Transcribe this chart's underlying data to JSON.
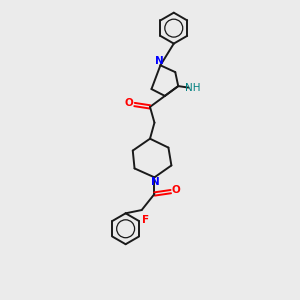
{
  "bg_color": "#ebebeb",
  "bond_color": "#1a1a1a",
  "N_color": "#0000ff",
  "O_color": "#ff0000",
  "F_color": "#ff0000",
  "NH_color": "#008080",
  "line_width": 1.4,
  "fig_size": [
    3.0,
    3.0
  ],
  "dpi": 100,
  "xlim": [
    0,
    10
  ],
  "ylim": [
    0,
    10
  ]
}
